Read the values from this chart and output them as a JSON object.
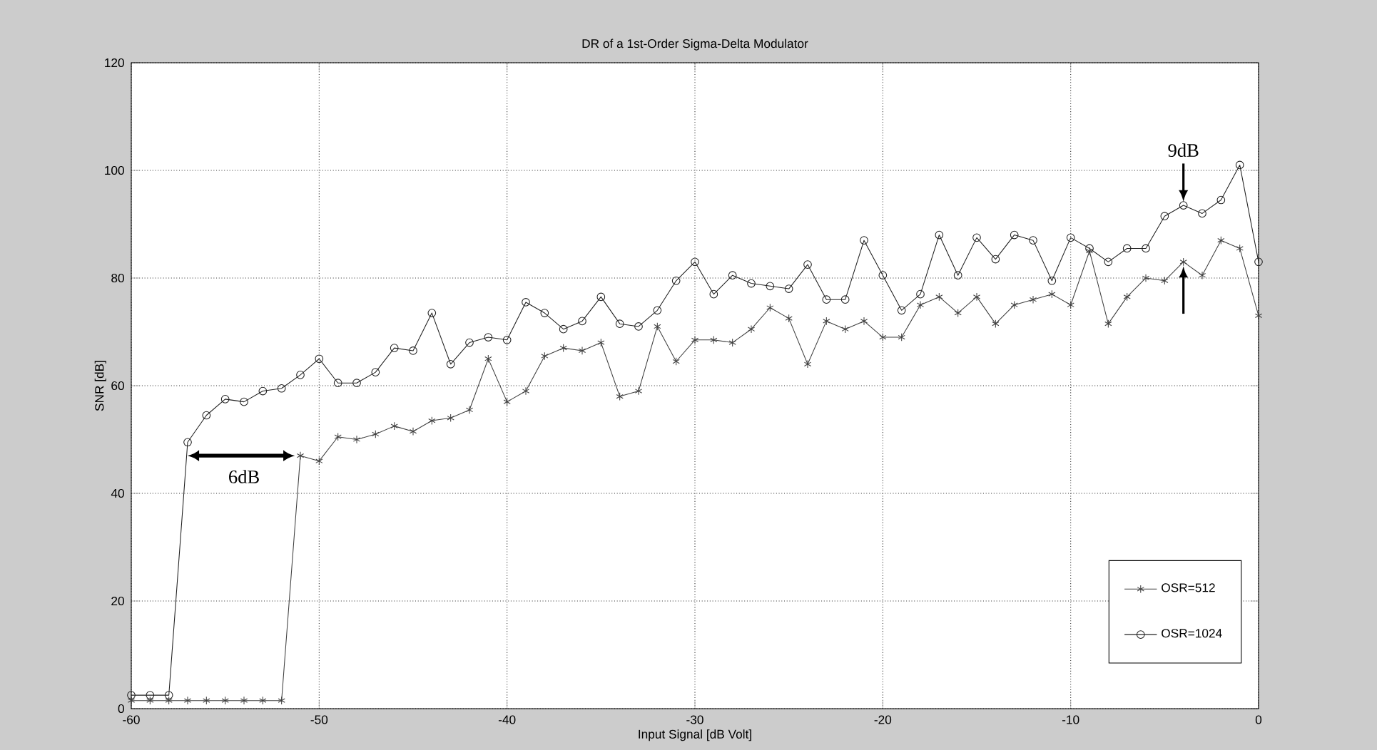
{
  "chart_data": {
    "type": "line",
    "title": "DR of a 1st-Order Sigma-Delta Modulator",
    "xlabel": "Input Signal [dB Volt]",
    "ylabel": "SNR [dB]",
    "x": [
      -60,
      -59,
      -58,
      -57,
      -56,
      -55,
      -54,
      -53,
      -52,
      -51,
      -50,
      -49,
      -48,
      -47,
      -46,
      -45,
      -44,
      -43,
      -42,
      -41,
      -40,
      -39,
      -38,
      -37,
      -36,
      -35,
      -34,
      -33,
      -32,
      -31,
      -30,
      -29,
      -28,
      -27,
      -26,
      -25,
      -24,
      -23,
      -22,
      -21,
      -20,
      -19,
      -18,
      -17,
      -16,
      -15,
      -14,
      -13,
      -12,
      -11,
      -10,
      -9,
      -8,
      -7,
      -6,
      -5,
      -4,
      -3,
      -2,
      -1,
      0
    ],
    "series": [
      {
        "name": "OSR=512",
        "color": "#404040",
        "marker": "cross",
        "values": [
          1.5,
          1.5,
          1.5,
          1.5,
          1.5,
          1.5,
          1.5,
          1.5,
          1.5,
          47,
          46,
          50.5,
          50,
          51,
          52.5,
          51.5,
          53.5,
          54,
          55.5,
          65,
          57,
          59,
          65.5,
          67,
          66.5,
          68,
          58,
          59,
          71,
          64.5,
          68.5,
          68.5,
          68,
          70.5,
          74.5,
          72.5,
          64,
          72,
          70.5,
          72,
          69,
          69,
          75,
          76.5,
          73.5,
          76.5,
          71.5,
          75,
          76,
          77,
          75,
          85,
          71.5,
          76.5,
          80,
          79.5,
          83,
          80.5,
          87,
          85.5,
          73
        ]
      },
      {
        "name": "OSR=1024",
        "color": "#202020",
        "marker": "circle",
        "values": [
          2.5,
          2.5,
          2.5,
          49.5,
          54.5,
          57.5,
          57,
          59,
          59.5,
          62,
          65,
          60.5,
          60.5,
          62.5,
          67,
          66.5,
          73.5,
          64,
          68,
          69,
          68.5,
          75.5,
          73.5,
          70.5,
          72,
          76.5,
          71.5,
          71,
          74,
          79.5,
          83,
          77,
          80.5,
          79,
          78.5,
          78,
          82.5,
          76,
          76,
          87,
          80.5,
          74,
          77,
          88,
          80.5,
          87.5,
          83.5,
          88,
          87,
          79.5,
          87.5,
          85.5,
          83,
          85.5,
          85.5,
          91.5,
          93.5,
          92,
          94.5,
          101,
          83
        ]
      }
    ],
    "xlim": [
      -60,
      0
    ],
    "ylim": [
      0,
      120
    ],
    "xticks": [
      -60,
      -50,
      -40,
      -30,
      -20,
      -10,
      0
    ],
    "yticks": [
      0,
      20,
      40,
      60,
      80,
      100,
      120
    ],
    "grid": true,
    "legend": "bottom right",
    "annotations": [
      {
        "text": "6dB",
        "x": -51,
        "y": 47
      },
      {
        "text": "9dB",
        "x": -4,
        "y": 93.5
      }
    ]
  }
}
